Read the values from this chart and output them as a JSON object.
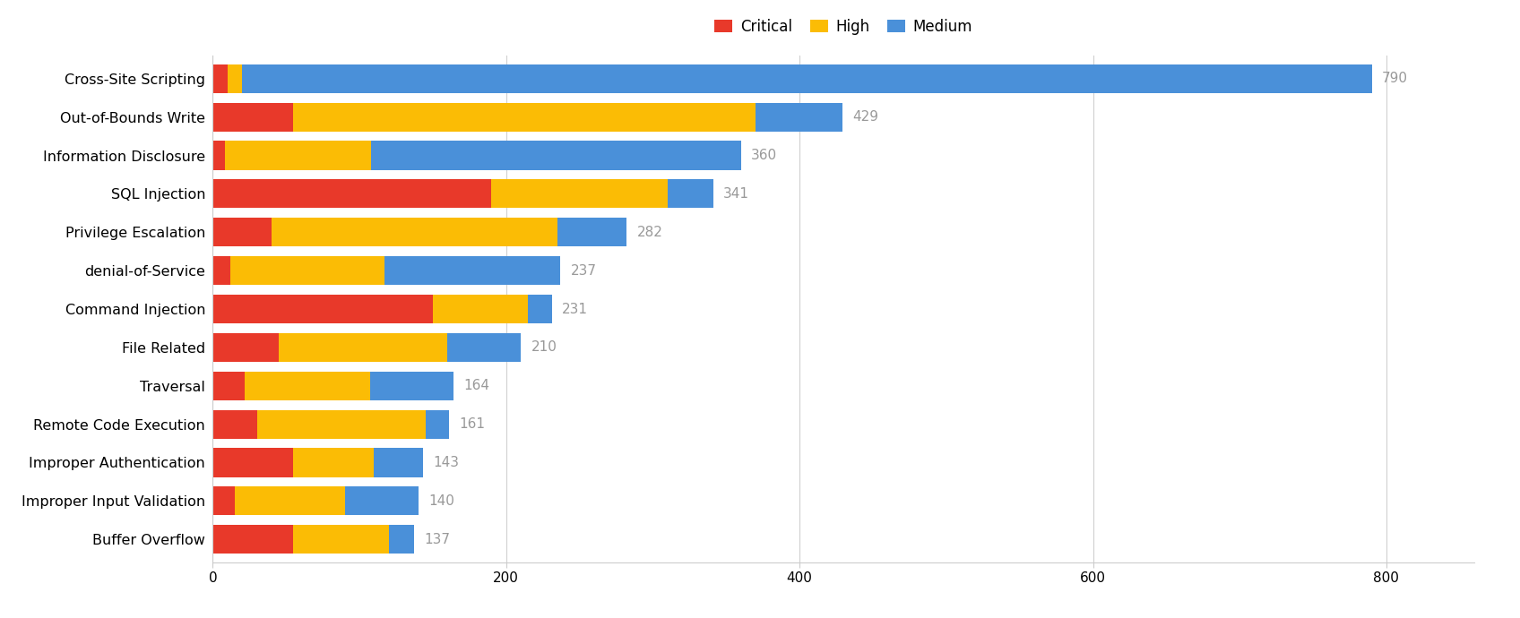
{
  "categories": [
    "Cross-Site Scripting",
    "Out-of-Bounds Write",
    "Information Disclosure",
    "SQL Injection",
    "Privilege Escalation",
    "denial-of-Service",
    "Command Injection",
    "File Related",
    "Traversal",
    "Remote Code Execution",
    "Improper Authentication",
    "Improper Input Validation",
    "Buffer Overflow"
  ],
  "critical": [
    10,
    55,
    8,
    190,
    40,
    12,
    150,
    45,
    22,
    30,
    55,
    15,
    55
  ],
  "high": [
    10,
    315,
    100,
    120,
    195,
    105,
    65,
    115,
    85,
    115,
    55,
    75,
    65
  ],
  "medium": [
    770,
    59,
    252,
    31,
    47,
    120,
    16,
    50,
    57,
    16,
    33,
    50,
    17
  ],
  "totals": [
    790,
    429,
    360,
    341,
    282,
    237,
    231,
    210,
    164,
    161,
    143,
    140,
    137
  ],
  "color_critical": "#E8392A",
  "color_high": "#FBBC05",
  "color_medium": "#4A90D9",
  "color_label": "#999999",
  "background_color": "#ffffff",
  "legend_labels": [
    "Critical",
    "High",
    "Medium"
  ],
  "xlim": [
    0,
    860
  ],
  "xticks": [
    0,
    200,
    400,
    600,
    800
  ],
  "bar_height": 0.75,
  "figsize": [
    16.96,
    6.9
  ],
  "dpi": 100
}
